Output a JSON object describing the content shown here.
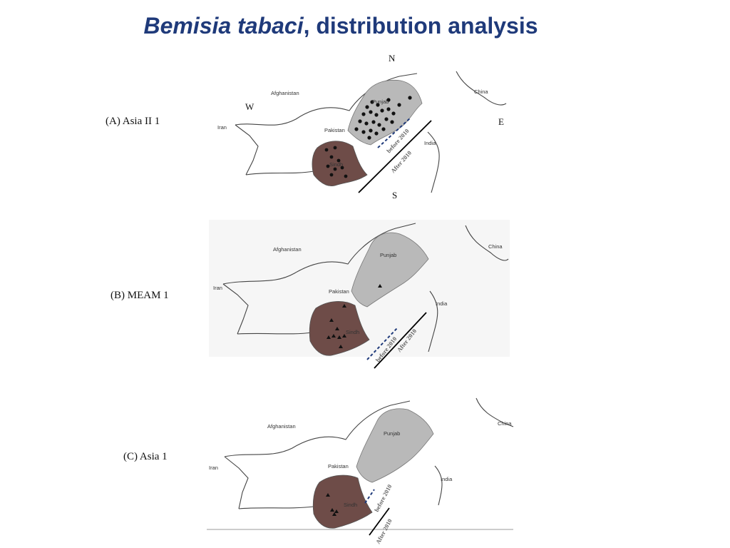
{
  "title": {
    "italic": "Bemisia tabaci",
    "rest": ", distribution analysis"
  },
  "compass": {
    "n": "N",
    "s": "S",
    "e": "E",
    "w": "W"
  },
  "colors": {
    "title": "#1f3a7a",
    "punjab": "#b9b9b9",
    "sindh": "#6e4c48",
    "before_2010_line": "#1f3a7a",
    "after_2010_line": "#000000"
  },
  "panels": [
    {
      "label": "(A) Asia II 1",
      "places": {
        "afghanistan": "Afghanistan",
        "china": "China",
        "iran": "Iran",
        "pakistan": "Pakistan",
        "india": "India",
        "punjab": "Punjab",
        "sindh": "Sindh"
      },
      "legend": {
        "before": "before 2010",
        "after": "After 2010"
      },
      "marker": "circle"
    },
    {
      "label": "(B) MEAM 1",
      "places": {
        "afghanistan": "Afghanistan",
        "china": "China",
        "iran": "Iran",
        "pakistan": "Pakistan",
        "india": "India",
        "punjab": "Punjab",
        "sindh": "Sindh"
      },
      "legend": {
        "before": "before 2010",
        "after": "After 2010"
      },
      "marker": "triangle"
    },
    {
      "label": "(C) Asia 1",
      "places": {
        "afghanistan": "Afghanistan",
        "china": "China",
        "iran": "Iran",
        "pakistan": "Pakistan",
        "india": "India",
        "punjab": "Punjab",
        "sindh": "Sindh"
      },
      "legend": {
        "before": "before 2010",
        "after": "After 2010"
      },
      "marker": "triangle"
    }
  ]
}
